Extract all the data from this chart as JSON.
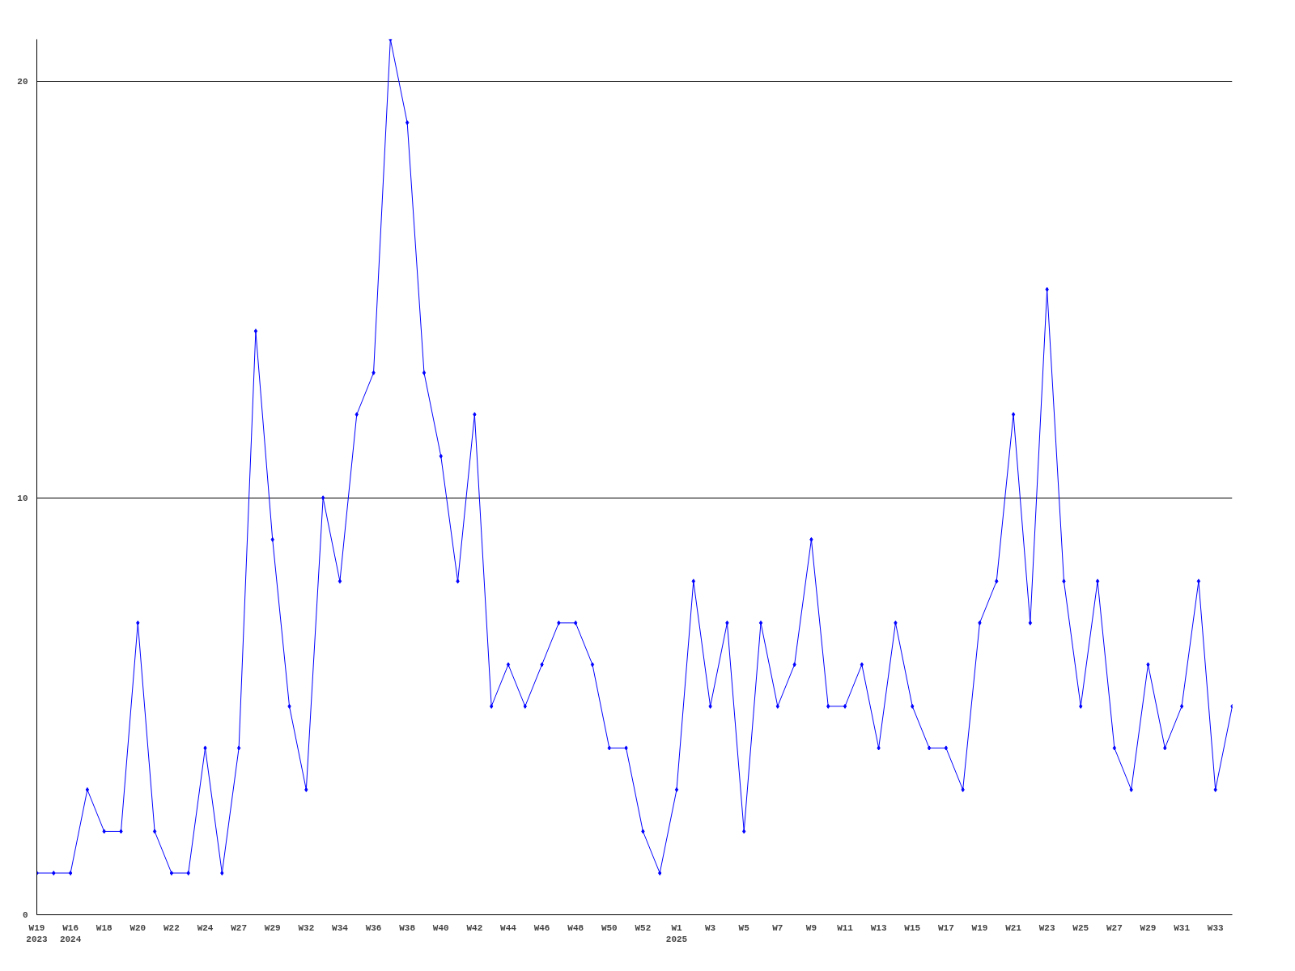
{
  "chart_data": {
    "type": "line",
    "categories": [
      "W19\n2023",
      null,
      "W16\n2024",
      null,
      "W18",
      null,
      "W20",
      null,
      "W22",
      null,
      "W24",
      null,
      "W27",
      null,
      "W29",
      null,
      "W32",
      null,
      "W34",
      null,
      "W36",
      null,
      "W38",
      null,
      "W40",
      null,
      "W42",
      null,
      "W44",
      null,
      "W46",
      null,
      "W48",
      null,
      "W50",
      null,
      "W52",
      null,
      "W1\n2025",
      null,
      "W3",
      null,
      "W5",
      null,
      "W7",
      null,
      "W9",
      null,
      "W11",
      null,
      "W13",
      null,
      "W15",
      null,
      "W17",
      null,
      "W19",
      null,
      "W21",
      null,
      "W23",
      null,
      "W25",
      null,
      "W27",
      null,
      "W29",
      null,
      "W31",
      null,
      "W33",
      null
    ],
    "series": [
      {
        "color": "#0000ff",
        "values": [
          1,
          1,
          1,
          3,
          2,
          2,
          7,
          2,
          1,
          1,
          4,
          1,
          4,
          14,
          9,
          5,
          3,
          10,
          8,
          12,
          13,
          21,
          19,
          13,
          11,
          8,
          12,
          5,
          6,
          5,
          6,
          7,
          7,
          6,
          4,
          4,
          2,
          1,
          3,
          8,
          5,
          7,
          2,
          7,
          5,
          6,
          9,
          5,
          5,
          6,
          4,
          7,
          5,
          4,
          4,
          3,
          7,
          8,
          12,
          7,
          15,
          8,
          5,
          8,
          4,
          3,
          6,
          4,
          5,
          8,
          3,
          5
        ]
      }
    ],
    "ylim": [
      0,
      21
    ],
    "yticks": [
      0,
      10,
      20
    ],
    "grid": "y",
    "marker": "diamond",
    "line_style": "solid"
  }
}
